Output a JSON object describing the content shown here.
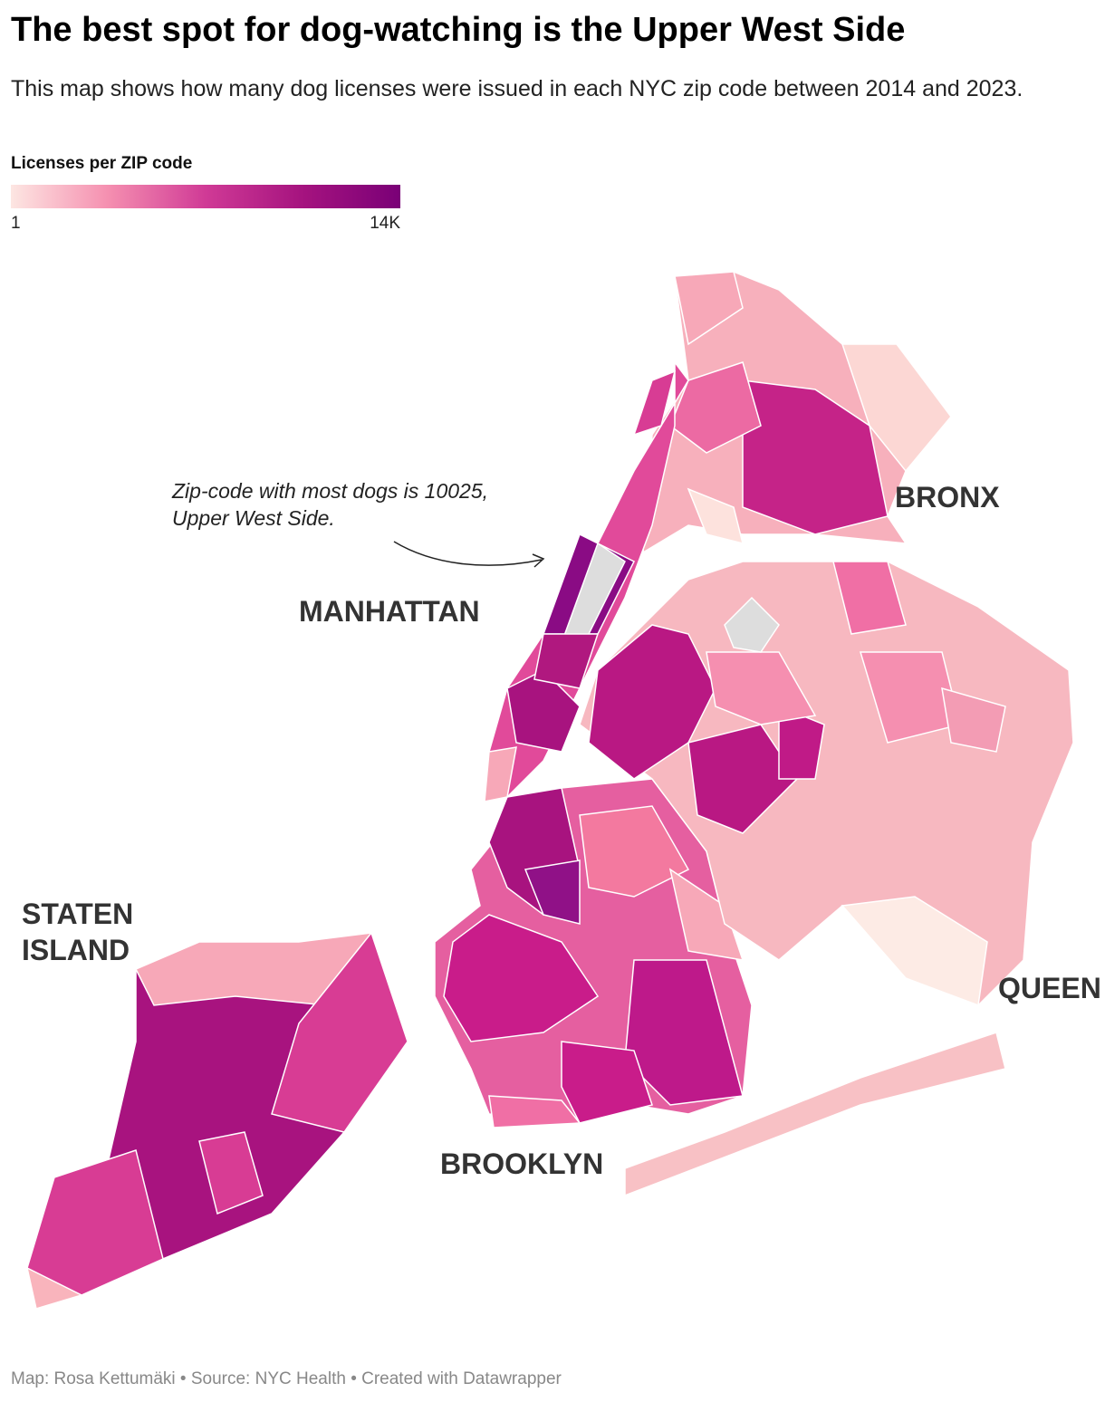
{
  "header": {
    "title": "The best spot for dog-watching is the Upper West Side",
    "subtitle": "This map shows how many dog licenses were issued in each NYC zip code between 2014 and 2023."
  },
  "legend": {
    "title": "Licenses per ZIP code",
    "min_label": "1",
    "max_label": "14K",
    "colors": [
      "#fde6e2",
      "#f58fb0",
      "#d03a96",
      "#a5137f",
      "#7a0077"
    ]
  },
  "map": {
    "annotation": [
      "Zip-code with most dogs is 10025,",
      "Upper West Side."
    ],
    "labels": {
      "bronx": "BRONX",
      "manhattan": "MANHATTAN",
      "staten_island": [
        "STATEN",
        "ISLAND"
      ],
      "queens": "QUEEN",
      "brooklyn": "BROOKLYN"
    }
  },
  "footer": "Map: Rosa Kettumäki • Source: NYC Health  • Created with Datawrapper"
}
